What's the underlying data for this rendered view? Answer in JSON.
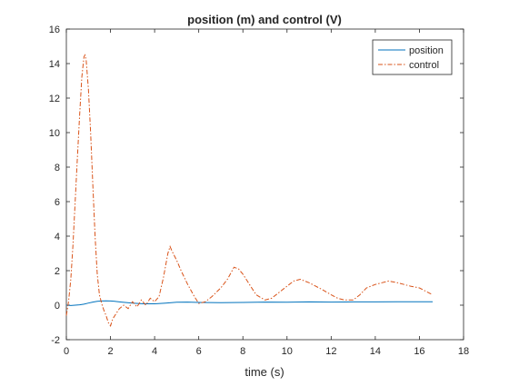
{
  "chart_data": {
    "type": "line",
    "title": "position (m) and control (V)",
    "xlabel": "time (s)",
    "ylabel": "",
    "xlim": [
      0,
      18
    ],
    "ylim": [
      -2,
      16
    ],
    "xticks": [
      0,
      2,
      4,
      6,
      8,
      10,
      12,
      14,
      16,
      18
    ],
    "yticks": [
      -2,
      0,
      2,
      4,
      6,
      8,
      10,
      12,
      14,
      16
    ],
    "grid": false,
    "legend_position": "top-right",
    "series": [
      {
        "name": "position",
        "color": "#0072BD",
        "line_style": "solid",
        "x": [
          0,
          0.2,
          0.4,
          0.6,
          0.8,
          1.0,
          1.2,
          1.4,
          1.6,
          1.8,
          2.0,
          2.2,
          2.5,
          3.0,
          3.5,
          4.0,
          4.5,
          5.0,
          5.5,
          6.0,
          7.0,
          8.0,
          9.0,
          10.0,
          11.0,
          12.0,
          13.0,
          14.0,
          15.0,
          16.0,
          16.6
        ],
        "y": [
          0,
          -0.02,
          0.0,
          0.02,
          0.06,
          0.12,
          0.18,
          0.22,
          0.24,
          0.25,
          0.24,
          0.22,
          0.18,
          0.12,
          0.08,
          0.08,
          0.12,
          0.17,
          0.18,
          0.16,
          0.14,
          0.16,
          0.18,
          0.17,
          0.19,
          0.18,
          0.19,
          0.19,
          0.2,
          0.2,
          0.2
        ]
      },
      {
        "name": "control",
        "color": "#D95319",
        "line_style": "dash-dot",
        "x": [
          0,
          0.1,
          0.2,
          0.3,
          0.4,
          0.5,
          0.6,
          0.7,
          0.8,
          0.85,
          0.9,
          1.0,
          1.1,
          1.2,
          1.3,
          1.4,
          1.5,
          1.6,
          1.7,
          1.8,
          1.9,
          2.0,
          2.1,
          2.2,
          2.4,
          2.6,
          2.8,
          3.0,
          3.2,
          3.4,
          3.6,
          3.8,
          4.0,
          4.2,
          4.4,
          4.6,
          4.7,
          4.8,
          5.0,
          5.2,
          5.5,
          5.8,
          6.0,
          6.3,
          6.6,
          7.0,
          7.3,
          7.6,
          7.8,
          8.0,
          8.3,
          8.6,
          9.0,
          9.3,
          9.6,
          10.0,
          10.3,
          10.6,
          11.0,
          11.3,
          11.6,
          12.0,
          12.3,
          12.6,
          13.0,
          13.3,
          13.6,
          14.0,
          14.3,
          14.6,
          15.0,
          15.3,
          15.6,
          16.0,
          16.3,
          16.6
        ],
        "y": [
          -0.6,
          0.2,
          1.5,
          3.5,
          6.0,
          8.5,
          11.0,
          13.2,
          14.4,
          14.5,
          14.2,
          12.5,
          10.0,
          7.0,
          4.0,
          1.8,
          0.6,
          0.1,
          -0.3,
          -0.6,
          -1.0,
          -1.2,
          -0.8,
          -0.6,
          -0.2,
          0.0,
          -0.2,
          0.2,
          -0.1,
          0.3,
          0.0,
          0.4,
          0.2,
          0.5,
          1.6,
          3.0,
          3.4,
          3.1,
          2.6,
          2.0,
          1.2,
          0.5,
          0.1,
          0.2,
          0.5,
          1.0,
          1.5,
          2.2,
          2.1,
          1.8,
          1.2,
          0.6,
          0.3,
          0.4,
          0.7,
          1.1,
          1.4,
          1.5,
          1.3,
          1.1,
          0.9,
          0.6,
          0.4,
          0.3,
          0.3,
          0.6,
          1.0,
          1.2,
          1.3,
          1.4,
          1.3,
          1.2,
          1.1,
          1.0,
          0.8,
          0.6
        ]
      }
    ]
  }
}
